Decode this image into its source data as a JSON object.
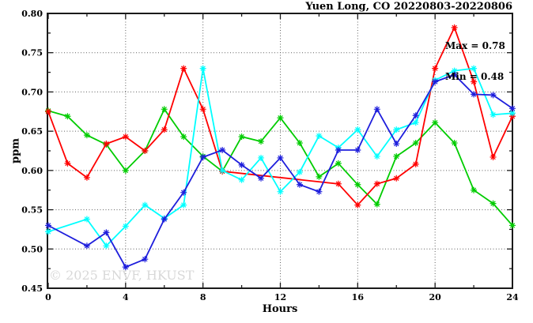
{
  "chart_data": {
    "type": "line",
    "title": "Yuen Long, CO 20220803-20220806",
    "xlabel": "Hours",
    "ylabel": "ppm",
    "xlim": [
      0,
      24
    ],
    "ylim": [
      0.45,
      0.8
    ],
    "grid": "dotted",
    "legend": "none",
    "x_tick_labels": [
      "0",
      "4",
      "8",
      "12",
      "16",
      "20",
      "24"
    ],
    "y_tick_labels": [
      "0.45",
      "0.50",
      "0.55",
      "0.60",
      "0.65",
      "0.70",
      "0.75",
      "0.80"
    ],
    "annotations": {
      "max": "Max = 0.78",
      "min": "Min = 0.48"
    },
    "watermark": "© 2025 ENVF, HKUST",
    "x_values": [
      0,
      1,
      2,
      3,
      4,
      5,
      6,
      7,
      8,
      9,
      10,
      11,
      12,
      13,
      14,
      15,
      16,
      17,
      18,
      19,
      20,
      21,
      22,
      23,
      24
    ],
    "series": [
      {
        "name": "green-line",
        "color": "#00cc00",
        "values": [
          0.676,
          0.669,
          0.645,
          0.633,
          0.6,
          0.625,
          0.678,
          0.643,
          0.618,
          0.599,
          0.643,
          0.637,
          0.667,
          0.635,
          0.592,
          0.609,
          0.582,
          0.557,
          0.618,
          0.635,
          0.661,
          0.635,
          0.575,
          0.558,
          0.53
        ]
      },
      {
        "name": "red-line",
        "color": "#ff0000",
        "values": [
          0.675,
          0.609,
          0.591,
          0.634,
          0.643,
          0.625,
          0.652,
          0.73,
          0.678,
          0.599,
          null,
          null,
          null,
          null,
          null,
          0.583,
          0.556,
          0.583,
          0.59,
          0.608,
          0.73,
          0.782,
          0.713,
          0.617,
          0.669
        ]
      },
      {
        "name": "cyan-line",
        "color": "#00ffff",
        "values": [
          0.522,
          null,
          0.538,
          0.504,
          0.529,
          0.556,
          0.539,
          0.556,
          0.73,
          0.6,
          0.588,
          0.616,
          0.573,
          0.598,
          0.644,
          0.629,
          0.652,
          0.618,
          0.652,
          0.661,
          0.715,
          0.727,
          0.73,
          0.671,
          0.673
        ]
      },
      {
        "name": "blue-line",
        "color": "#1e1edc",
        "values": [
          0.53,
          null,
          0.504,
          0.521,
          0.477,
          0.487,
          0.538,
          0.572,
          0.617,
          0.626,
          0.607,
          0.59,
          0.616,
          0.582,
          0.573,
          0.626,
          0.626,
          0.678,
          0.634,
          0.67,
          0.713,
          0.722,
          0.697,
          0.696,
          0.679
        ]
      }
    ]
  }
}
